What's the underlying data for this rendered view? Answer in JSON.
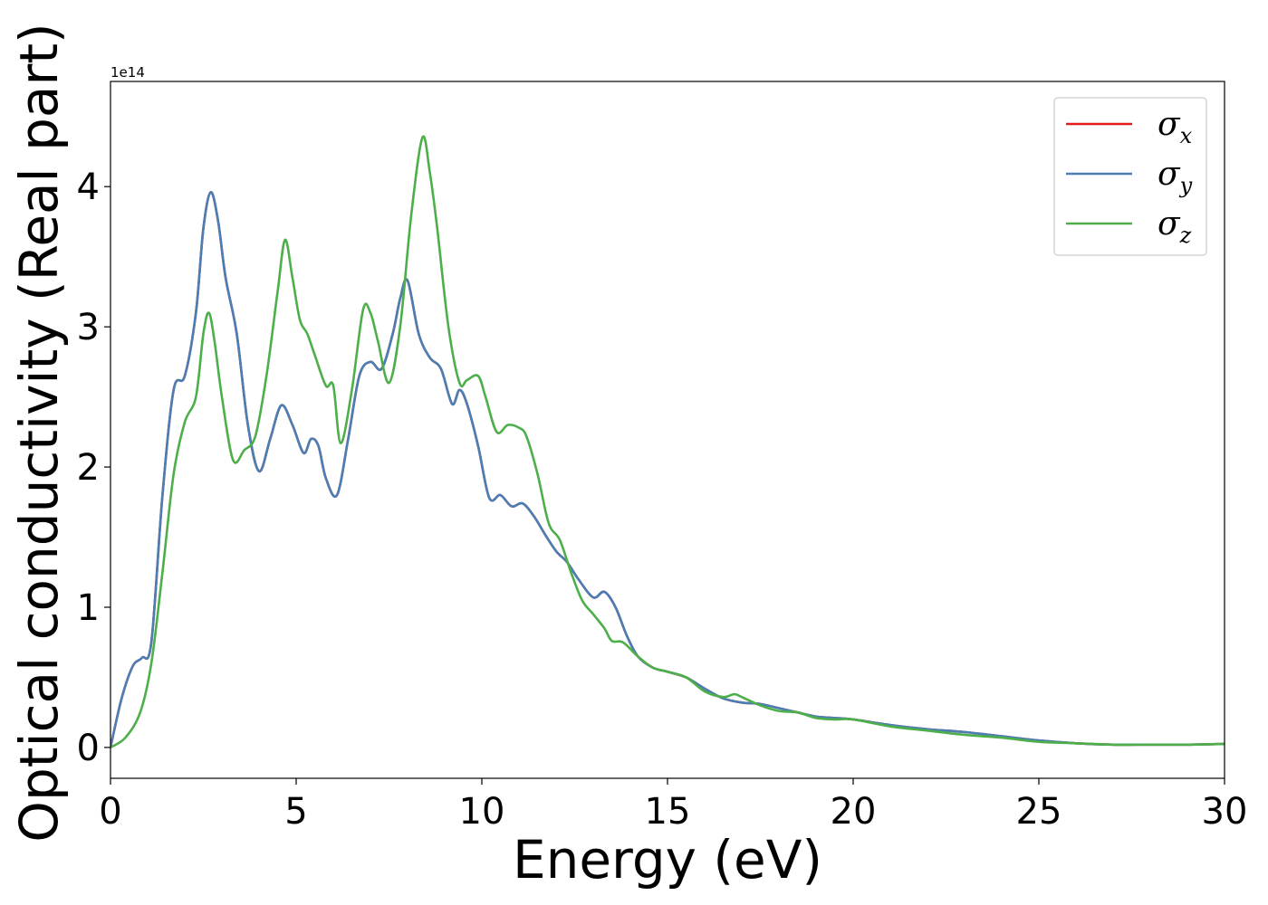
{
  "chart_data": {
    "type": "line",
    "xlabel": "Energy (eV)",
    "ylabel": "Optical conductivity (Real part)",
    "y_offset_label": "1e14",
    "y_scale": 100000000000000.0,
    "xlim": [
      0,
      30
    ],
    "ylim": [
      -0.22,
      4.75
    ],
    "x_ticks": [
      0,
      5,
      10,
      15,
      20,
      25,
      30
    ],
    "x_tick_labels": [
      "0",
      "5",
      "10",
      "15",
      "20",
      "25",
      "30"
    ],
    "y_ticks": [
      0,
      1,
      2,
      3,
      4
    ],
    "y_tick_labels": [
      "0",
      "1",
      "2",
      "3",
      "4"
    ],
    "grid": false,
    "legend_position": "top-right",
    "series": [
      {
        "name": "σx",
        "symbol": "σ",
        "subscript": "x",
        "color": "#e41a1c",
        "x": [
          0,
          0.3,
          0.6,
          0.85,
          1.1,
          1.4,
          1.7,
          2.0,
          2.3,
          2.5,
          2.7,
          2.9,
          3.1,
          3.4,
          3.7,
          4.0,
          4.3,
          4.6,
          4.9,
          5.2,
          5.4,
          5.6,
          5.8,
          6.1,
          6.4,
          6.7,
          7.0,
          7.3,
          7.6,
          7.8,
          8.0,
          8.3,
          8.6,
          8.9,
          9.2,
          9.4,
          9.6,
          9.9,
          10.2,
          10.5,
          10.8,
          11.1,
          11.4,
          11.7,
          12.0,
          12.3,
          12.6,
          13.0,
          13.3,
          13.6,
          13.9,
          14.2,
          14.6,
          15.0,
          15.5,
          16.0,
          16.5,
          17.0,
          17.5,
          18.0,
          18.5,
          19.0,
          19.5,
          20.0,
          21.0,
          22.0,
          23.0,
          24.0,
          25.0,
          26.0,
          27.0,
          28.0,
          29.0,
          30.0
        ],
        "y": [
          0,
          0.35,
          0.58,
          0.64,
          0.75,
          1.8,
          2.55,
          2.65,
          3.1,
          3.7,
          3.96,
          3.75,
          3.35,
          2.95,
          2.3,
          1.97,
          2.2,
          2.44,
          2.3,
          2.1,
          2.2,
          2.15,
          1.92,
          1.8,
          2.2,
          2.65,
          2.75,
          2.7,
          2.95,
          3.2,
          3.33,
          2.95,
          2.78,
          2.7,
          2.45,
          2.55,
          2.45,
          2.15,
          1.78,
          1.8,
          1.72,
          1.74,
          1.65,
          1.52,
          1.4,
          1.32,
          1.2,
          1.07,
          1.11,
          1.0,
          0.8,
          0.65,
          0.57,
          0.54,
          0.5,
          0.42,
          0.35,
          0.32,
          0.31,
          0.28,
          0.25,
          0.22,
          0.21,
          0.2,
          0.16,
          0.13,
          0.11,
          0.08,
          0.05,
          0.03,
          0.02,
          0.02,
          0.02,
          0.025
        ]
      },
      {
        "name": "σy",
        "symbol": "σ",
        "subscript": "y",
        "color": "#4a7fb5",
        "x": [
          0,
          0.3,
          0.6,
          0.85,
          1.1,
          1.4,
          1.7,
          2.0,
          2.3,
          2.5,
          2.7,
          2.9,
          3.1,
          3.4,
          3.7,
          4.0,
          4.3,
          4.6,
          4.9,
          5.2,
          5.4,
          5.6,
          5.8,
          6.1,
          6.4,
          6.7,
          7.0,
          7.3,
          7.6,
          7.8,
          8.0,
          8.3,
          8.6,
          8.9,
          9.2,
          9.4,
          9.6,
          9.9,
          10.2,
          10.5,
          10.8,
          11.1,
          11.4,
          11.7,
          12.0,
          12.3,
          12.6,
          13.0,
          13.3,
          13.6,
          13.9,
          14.2,
          14.6,
          15.0,
          15.5,
          16.0,
          16.5,
          17.0,
          17.5,
          18.0,
          18.5,
          19.0,
          19.5,
          20.0,
          21.0,
          22.0,
          23.0,
          24.0,
          25.0,
          26.0,
          27.0,
          28.0,
          29.0,
          30.0
        ],
        "y": [
          0,
          0.35,
          0.58,
          0.64,
          0.75,
          1.8,
          2.55,
          2.65,
          3.1,
          3.7,
          3.96,
          3.75,
          3.35,
          2.95,
          2.3,
          1.97,
          2.2,
          2.44,
          2.3,
          2.1,
          2.2,
          2.15,
          1.92,
          1.8,
          2.2,
          2.65,
          2.75,
          2.7,
          2.95,
          3.2,
          3.33,
          2.95,
          2.78,
          2.7,
          2.45,
          2.55,
          2.45,
          2.15,
          1.78,
          1.8,
          1.72,
          1.74,
          1.65,
          1.52,
          1.4,
          1.32,
          1.2,
          1.07,
          1.11,
          1.0,
          0.8,
          0.65,
          0.57,
          0.54,
          0.5,
          0.42,
          0.35,
          0.32,
          0.31,
          0.28,
          0.25,
          0.22,
          0.21,
          0.2,
          0.16,
          0.13,
          0.11,
          0.08,
          0.05,
          0.03,
          0.02,
          0.02,
          0.02,
          0.025
        ]
      },
      {
        "name": "σz",
        "symbol": "σ",
        "subscript": "z",
        "color": "#4daf4a",
        "x": [
          0,
          0.4,
          0.8,
          1.1,
          1.4,
          1.7,
          2.0,
          2.3,
          2.5,
          2.65,
          2.8,
          3.0,
          3.3,
          3.6,
          3.9,
          4.2,
          4.5,
          4.7,
          4.9,
          5.1,
          5.3,
          5.5,
          5.8,
          6.0,
          6.2,
          6.5,
          6.8,
          7.0,
          7.2,
          7.5,
          7.8,
          8.1,
          8.4,
          8.6,
          8.8,
          9.1,
          9.4,
          9.6,
          9.9,
          10.1,
          10.4,
          10.7,
          11.0,
          11.2,
          11.5,
          11.8,
          12.1,
          12.4,
          12.7,
          13.0,
          13.3,
          13.5,
          13.8,
          14.2,
          14.6,
          15.0,
          15.5,
          16.0,
          16.5,
          16.8,
          17.0,
          17.5,
          18.0,
          18.5,
          19.0,
          19.5,
          20.0,
          21.0,
          22.0,
          23.0,
          24.0,
          25.0,
          26.0,
          27.0,
          28.0,
          29.0,
          30.0
        ],
        "y": [
          0,
          0.07,
          0.25,
          0.6,
          1.25,
          1.95,
          2.32,
          2.5,
          2.95,
          3.1,
          2.9,
          2.5,
          2.05,
          2.12,
          2.22,
          2.65,
          3.25,
          3.62,
          3.35,
          3.05,
          2.95,
          2.8,
          2.58,
          2.58,
          2.17,
          2.55,
          3.12,
          3.1,
          2.9,
          2.6,
          3.0,
          3.8,
          4.35,
          4.1,
          3.7,
          3.0,
          2.6,
          2.62,
          2.65,
          2.5,
          2.25,
          2.3,
          2.28,
          2.22,
          1.95,
          1.6,
          1.48,
          1.25,
          1.05,
          0.95,
          0.85,
          0.76,
          0.75,
          0.65,
          0.57,
          0.54,
          0.5,
          0.4,
          0.36,
          0.38,
          0.36,
          0.3,
          0.26,
          0.25,
          0.21,
          0.2,
          0.2,
          0.15,
          0.12,
          0.09,
          0.07,
          0.04,
          0.03,
          0.02,
          0.02,
          0.02,
          0.025
        ]
      }
    ]
  }
}
